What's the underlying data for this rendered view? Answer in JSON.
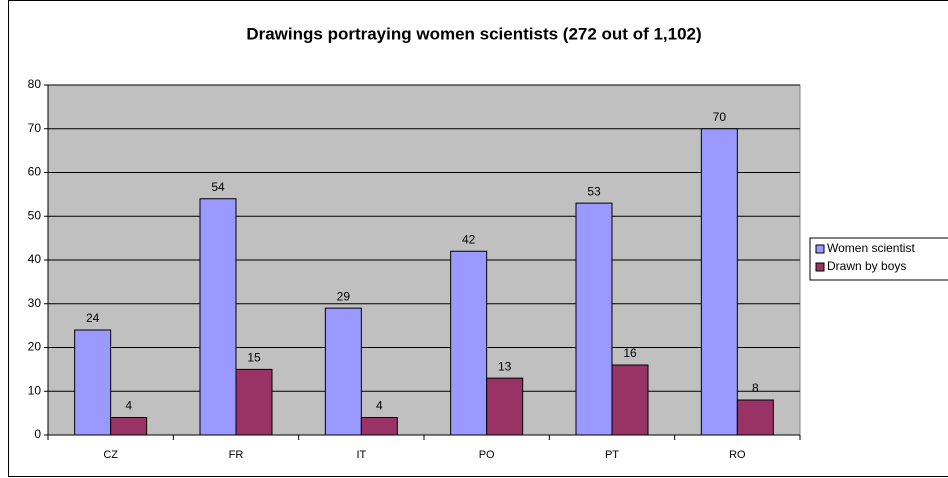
{
  "chart_data": {
    "type": "bar",
    "title": "Drawings portraying women scientists (272 out of 1,102)",
    "categories": [
      "CZ",
      "FR",
      "IT",
      "PO",
      "PT",
      "RO"
    ],
    "series": [
      {
        "name": "Women scientist",
        "color": "#9999ff",
        "values": [
          24,
          54,
          29,
          42,
          53,
          70
        ]
      },
      {
        "name": "Drawn by boys",
        "color": "#993366",
        "values": [
          4,
          15,
          4,
          13,
          16,
          8
        ]
      }
    ],
    "ylim": [
      0,
      80
    ],
    "yticks": [
      0,
      10,
      20,
      30,
      40,
      50,
      60,
      70,
      80
    ],
    "grid": true,
    "legend": "right"
  }
}
